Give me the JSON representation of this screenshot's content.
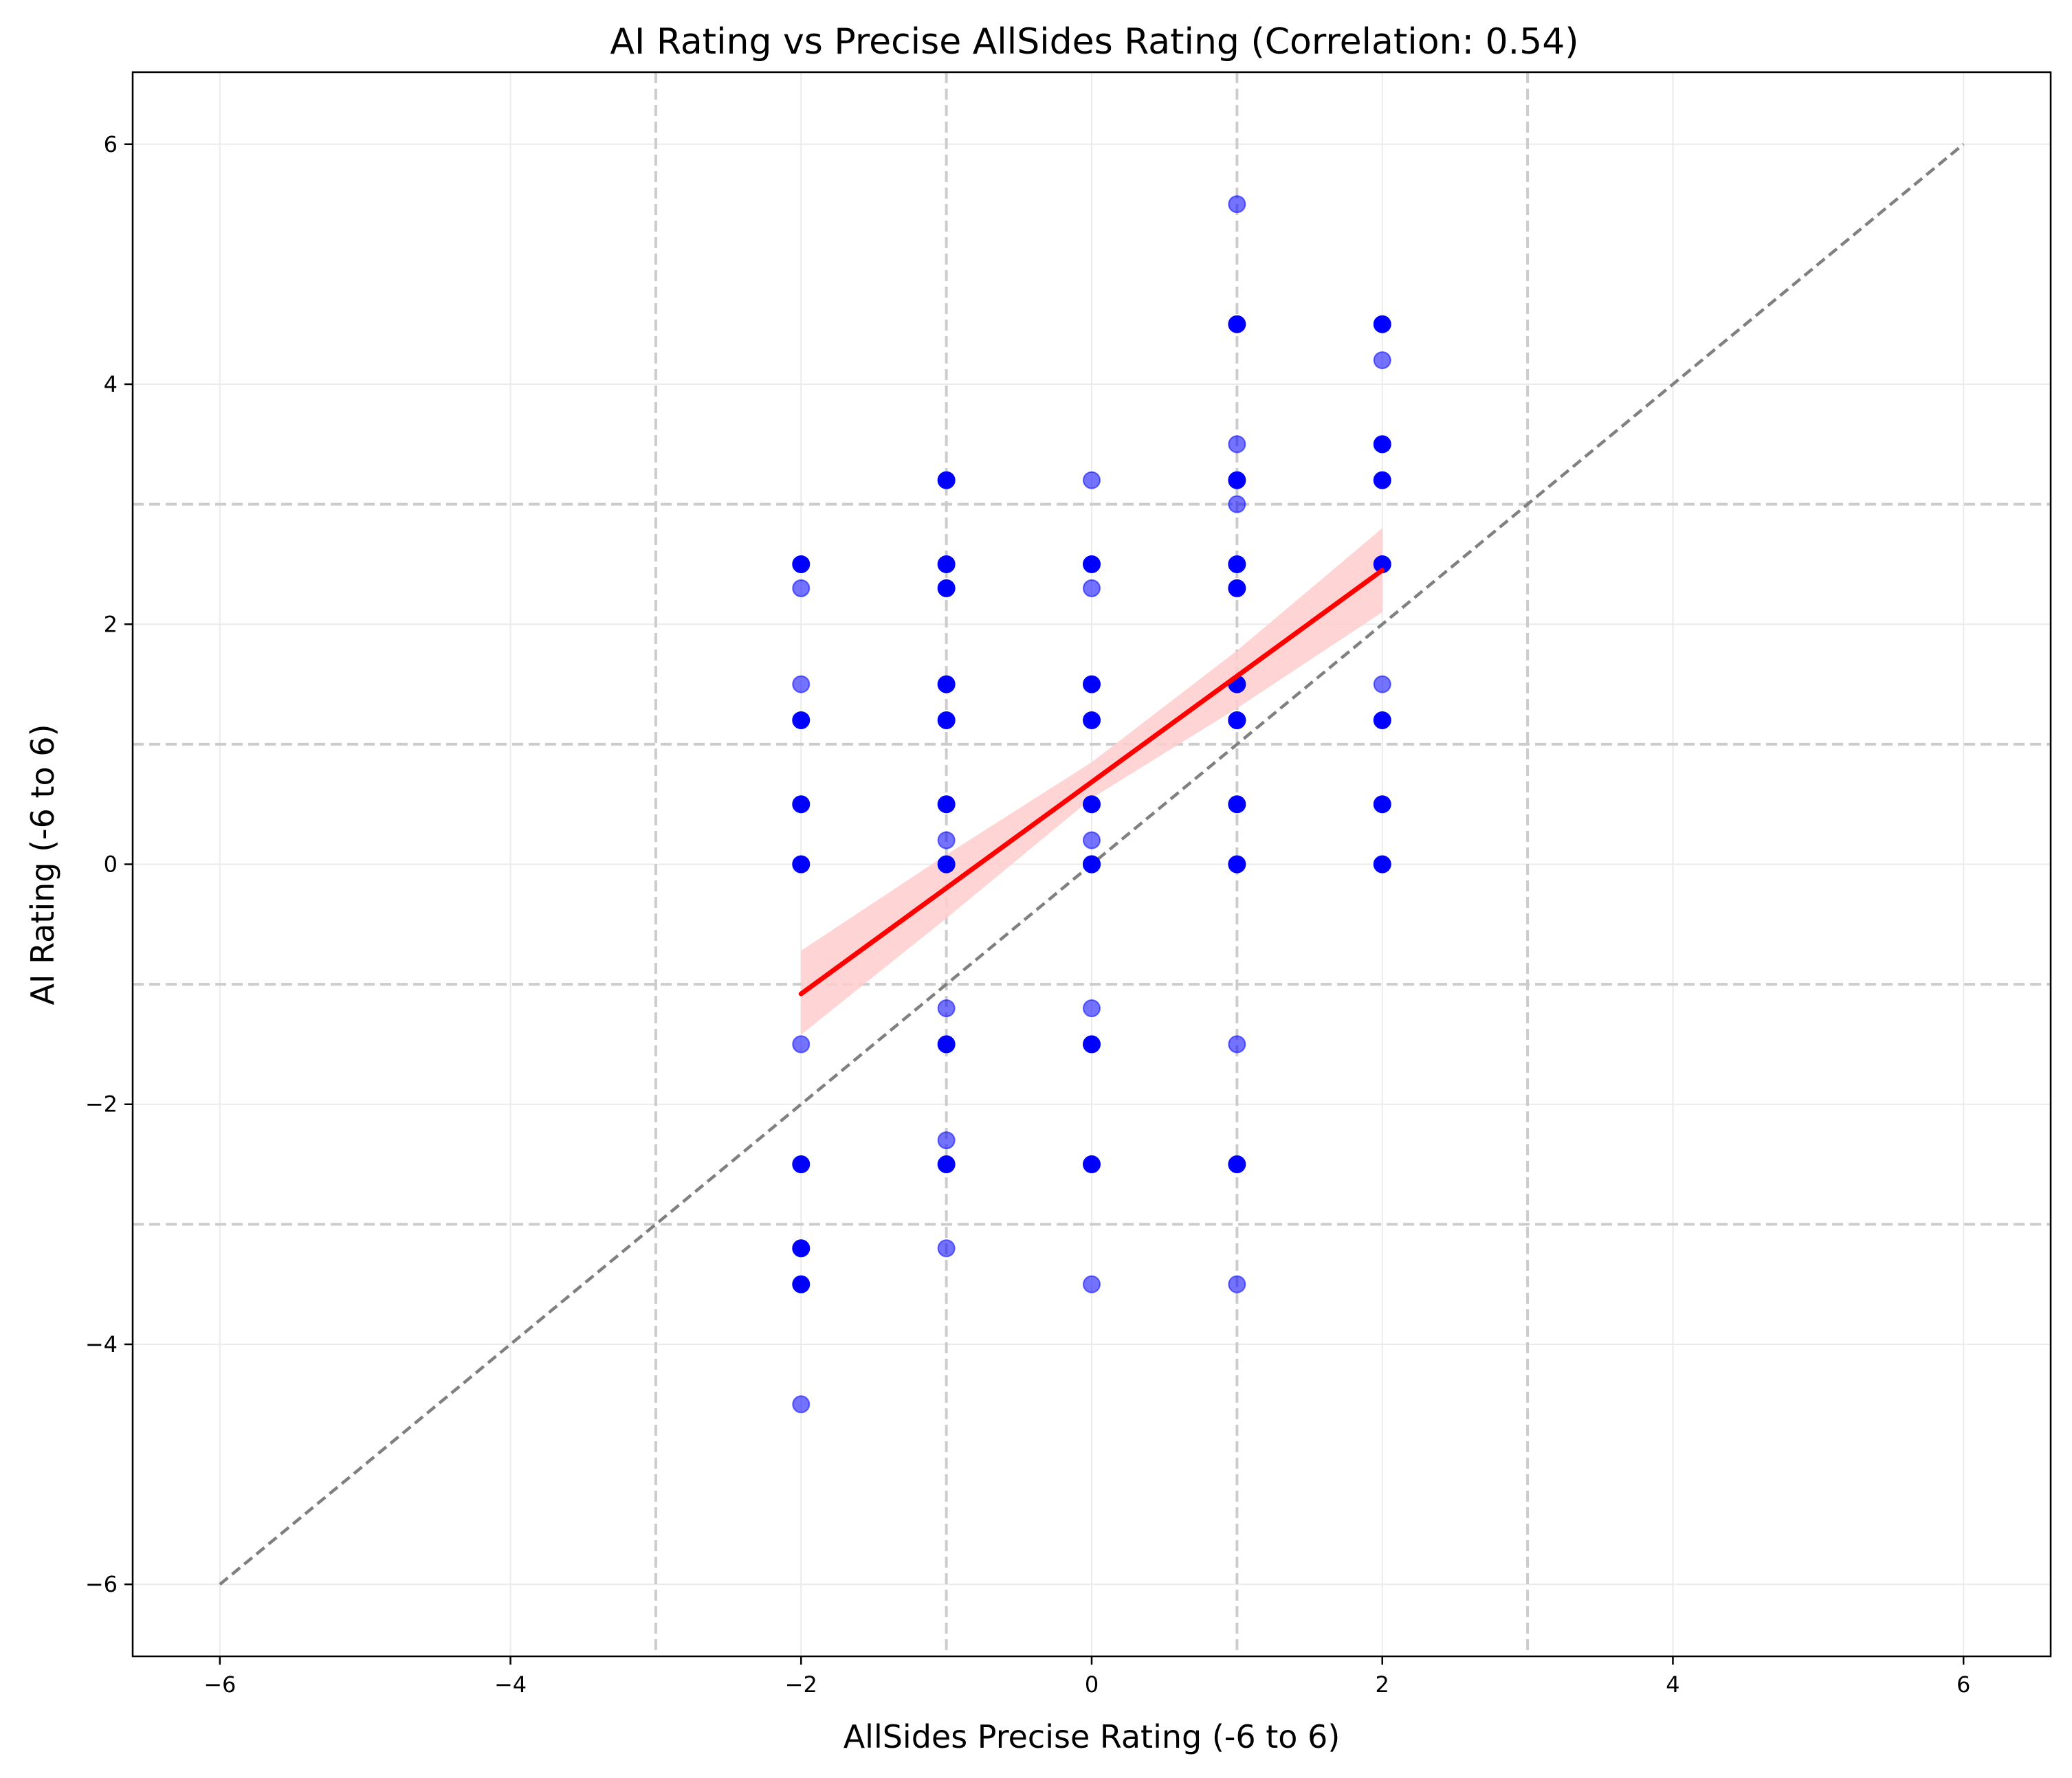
{
  "chart_data": {
    "type": "scatter",
    "title": "AI Rating vs Precise AllSides Rating (Correlation: 0.54)",
    "xlabel": "AllSides Precise Rating (-6 to 6)",
    "ylabel": "AI Rating (-6 to 6)",
    "xlim": [
      -6.6,
      6.6
    ],
    "ylim": [
      -6.6,
      6.6
    ],
    "x_ticks": [
      -6,
      -4,
      -2,
      0,
      2,
      4,
      6
    ],
    "y_ticks": [
      -6,
      -4,
      -2,
      0,
      2,
      4,
      6
    ],
    "x_tick_labels": [
      "−6",
      "−4",
      "−2",
      "0",
      "2",
      "4",
      "6"
    ],
    "y_tick_labels": [
      "−6",
      "−4",
      "−2",
      "0",
      "2",
      "4",
      "6"
    ],
    "grid": true,
    "reference_lines": {
      "vertical": [
        -3,
        -1,
        1,
        3
      ],
      "horizontal": [
        -3,
        -1,
        1,
        3
      ]
    },
    "identity_line": {
      "from": [
        -6,
        -6
      ],
      "to": [
        6,
        6
      ],
      "color": "#808080"
    },
    "regression": {
      "points": [
        [
          -2,
          -1.08
        ],
        [
          2,
          2.45
        ]
      ],
      "band_upper": [
        [
          -2,
          -0.72
        ],
        [
          -1,
          0.08
        ],
        [
          0,
          0.85
        ],
        [
          1,
          1.78
        ],
        [
          2,
          2.8
        ]
      ],
      "band_lower": [
        [
          -2,
          -1.42
        ],
        [
          -1,
          -0.45
        ],
        [
          0,
          0.55
        ],
        [
          1,
          1.3
        ],
        [
          2,
          2.1
        ]
      ],
      "color": "#ff0000",
      "band_color": "#ffcccc"
    },
    "points_color": "#0000ff",
    "series": [
      {
        "x": [
          -2,
          -2,
          -2,
          -2,
          -2,
          -2,
          -2,
          -2,
          -2,
          -2,
          -2,
          -1,
          -1,
          -1,
          -1,
          -1,
          -1,
          -1,
          -1,
          -1,
          -1,
          -1,
          -1,
          -1,
          0,
          0,
          0,
          0,
          0,
          0,
          0,
          0,
          0,
          0,
          0,
          0,
          0,
          1,
          1,
          1,
          1,
          1,
          1,
          1,
          1,
          1,
          1,
          1,
          1,
          1,
          1,
          1,
          2,
          2,
          2,
          2,
          2,
          2,
          2,
          2,
          2
        ],
        "y": [
          2.5,
          2.3,
          1.5,
          1.2,
          0.5,
          0,
          -1.5,
          -2.5,
          -3.2,
          -3.5,
          -4.5,
          3.2,
          2.5,
          2.3,
          1.5,
          1.2,
          0.5,
          0.2,
          0,
          -1.2,
          -1.5,
          -2.3,
          -2.5,
          -3.2,
          3.2,
          2.5,
          2.3,
          1.5,
          1.2,
          0.5,
          0.2,
          0,
          -1.2,
          -1.5,
          -2.5,
          -3.5,
          0,
          5.5,
          4.5,
          3.5,
          3.2,
          3.0,
          2.5,
          2.3,
          1.5,
          1.2,
          0.5,
          0,
          -1.5,
          -2.5,
          -3.5,
          1.2,
          4.5,
          4.2,
          3.5,
          3.2,
          2.5,
          1.5,
          1.2,
          0.5,
          0
        ],
        "opacity": [
          1,
          0.55,
          0.55,
          1,
          1,
          1,
          0.55,
          1,
          1,
          1,
          0.55,
          1,
          1,
          1,
          1,
          1,
          1,
          0.55,
          1,
          0.55,
          1,
          0.55,
          1,
          0.55,
          0.55,
          1,
          0.55,
          1,
          1,
          1,
          0.55,
          1,
          0.55,
          1,
          1,
          0.55,
          1,
          0.55,
          1,
          0.55,
          1,
          0.55,
          1,
          1,
          1,
          1,
          1,
          1,
          0.55,
          1,
          0.55,
          1,
          1,
          0.55,
          1,
          1,
          1,
          0.55,
          1,
          1,
          1
        ]
      }
    ]
  }
}
